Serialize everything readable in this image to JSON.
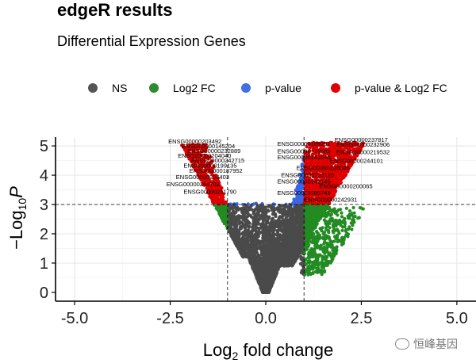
{
  "chart_data": {
    "type": "scatter",
    "title": "edgeR results",
    "subtitle": "Differential Expression Genes",
    "xlabel_base": "Log",
    "xlabel_sub": "2",
    "xlabel_rest": " fold change",
    "ylabel_minus": "−Log",
    "ylabel_sub": "10",
    "ylabel_var": "P",
    "xlim": [
      -5.5,
      5.5
    ],
    "ylim": [
      -0.3,
      5.3
    ],
    "x_ticks": [
      -5.0,
      -2.5,
      0.0,
      2.5,
      5.0
    ],
    "x_tick_labels": [
      "-5.0",
      "-2.5",
      "0.0",
      "2.5",
      "5.0"
    ],
    "y_ticks": [
      0,
      1,
      2,
      3,
      4,
      5
    ],
    "y_tick_labels": [
      "0",
      "1",
      "2",
      "3",
      "4",
      "5"
    ],
    "fc_cutoff": 1,
    "p_cutoff": 3,
    "grid": true,
    "legend_position": "top",
    "legend": [
      {
        "label": "NS",
        "color": "#555555"
      },
      {
        "label": "Log2 FC",
        "color": "#2e8b2e"
      },
      {
        "label": "p-value",
        "color": "#3f6fe0"
      },
      {
        "label": "p-value & Log2 FC",
        "color": "#e00000"
      }
    ],
    "colors": {
      "ns": "#4a4a4a",
      "fc": "#228b22",
      "p": "#3a66e6",
      "both": "#e00000"
    },
    "annotations": [
      {
        "text": "ENSG00000203492",
        "x": -2.55,
        "y": 5.08
      },
      {
        "text": "ENSG00000145204",
        "x": -2.2,
        "y": 4.92
      },
      {
        "text": "ENSG00000232889",
        "x": -2.05,
        "y": 4.76
      },
      {
        "text": "ENSG00000204040",
        "x": -2.3,
        "y": 4.6
      },
      {
        "text": "ENSG00000242715",
        "x": -1.95,
        "y": 4.44
      },
      {
        "text": "ENSG00000199135",
        "x": -2.15,
        "y": 4.26
      },
      {
        "text": "ENSG00000187952",
        "x": -2.0,
        "y": 4.08
      },
      {
        "text": "ENSG00000204403",
        "x": -2.35,
        "y": 3.86
      },
      {
        "text": "ENSG00000264708",
        "x": -2.6,
        "y": 3.62
      },
      {
        "text": "ENSG00000211790",
        "x": -2.15,
        "y": 3.36
      },
      {
        "text": "ENSG00000169251",
        "x": 0.3,
        "y": 5.0
      },
      {
        "text": "ENSG00000237817",
        "x": 1.8,
        "y": 5.14
      },
      {
        "text": "ENSG00000232906",
        "x": 1.85,
        "y": 4.98
      },
      {
        "text": "ENSG00000179585",
        "x": 0.3,
        "y": 4.74
      },
      {
        "text": "ENSG00000219532",
        "x": 1.85,
        "y": 4.72
      },
      {
        "text": "ENSG00000141640",
        "x": 0.3,
        "y": 4.54
      },
      {
        "text": "ENSG00000244101",
        "x": 1.68,
        "y": 4.42
      },
      {
        "text": "ENSG00000228046",
        "x": 0.8,
        "y": 4.18
      },
      {
        "text": "ENSG00000231120",
        "x": 0.4,
        "y": 3.94
      },
      {
        "text": "ENSG00000142145",
        "x": 0.3,
        "y": 3.72
      },
      {
        "text": "ENSG00000200065",
        "x": 1.4,
        "y": 3.56
      },
      {
        "text": "ENSG00000285748",
        "x": 0.3,
        "y": 3.32
      },
      {
        "text": "ENSG00000242931",
        "x": 1.0,
        "y": 3.1
      }
    ]
  },
  "watermark": {
    "text": "恒峰基因"
  }
}
